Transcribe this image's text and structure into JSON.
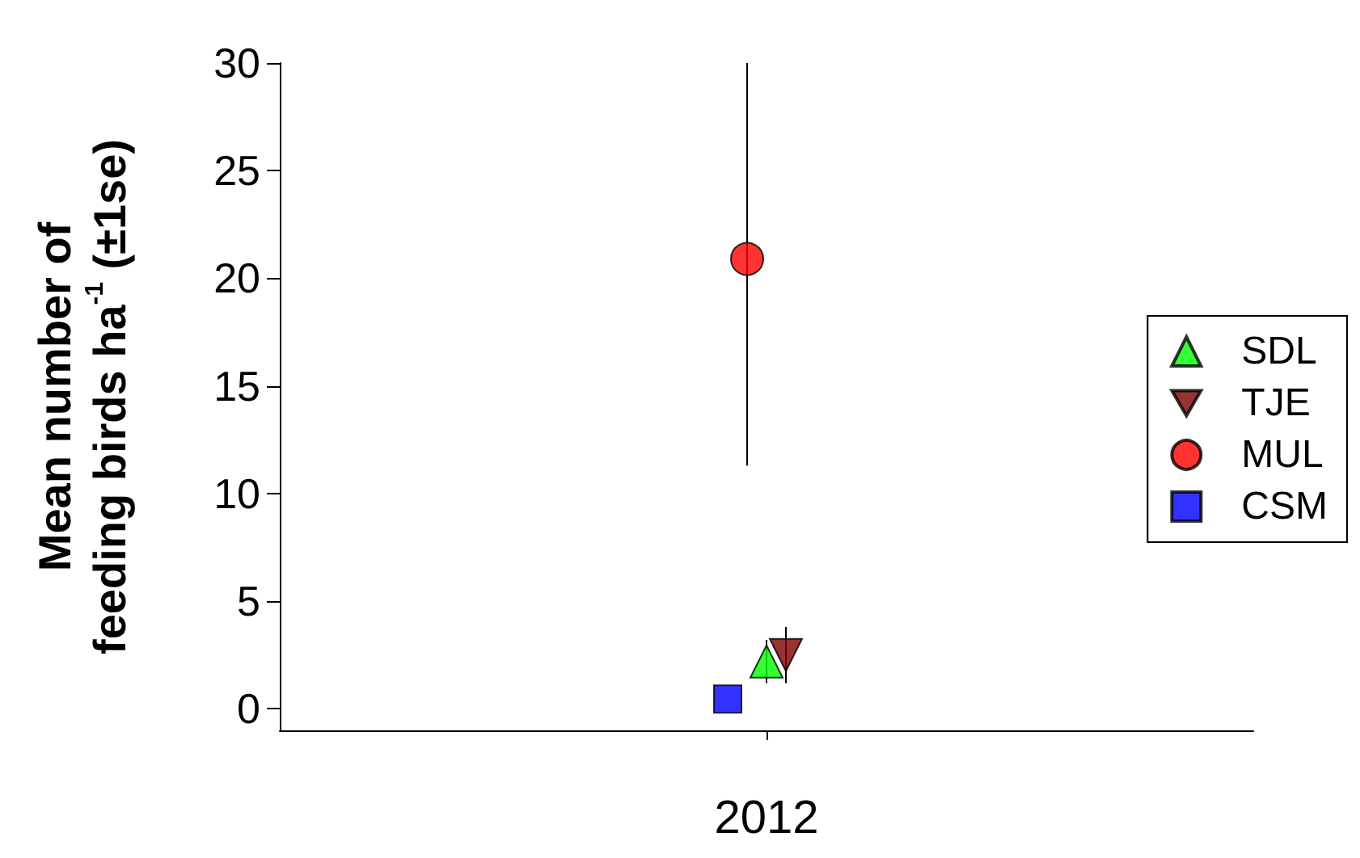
{
  "chart_data": {
    "type": "scatter",
    "ylabel": "Mean number of\nfeeding birds ha$^{-1}$ (±1se)",
    "categories": [
      "2012"
    ],
    "ylim": [
      -1,
      30
    ],
    "yticks": [
      0,
      5,
      10,
      15,
      20,
      25,
      30
    ],
    "grid": false,
    "legend": "right",
    "series": [
      {
        "name": "SDL",
        "color": "#00ff00",
        "marker": "triangle",
        "values": [
          2.2
        ],
        "errors": [
          1.0
        ]
      },
      {
        "name": "TJE",
        "color": "#800000",
        "marker": "triangle-down",
        "values": [
          2.5
        ],
        "errors": [
          1.3
        ]
      },
      {
        "name": "MUL",
        "color": "#ff0000",
        "marker": "circle",
        "values": [
          20.9
        ],
        "errors": [
          [
            11.3,
            30
          ]
        ]
      },
      {
        "name": "CSM",
        "color": "#0000ff",
        "marker": "square",
        "values": [
          0.45
        ],
        "errors": [
          null
        ]
      }
    ]
  }
}
